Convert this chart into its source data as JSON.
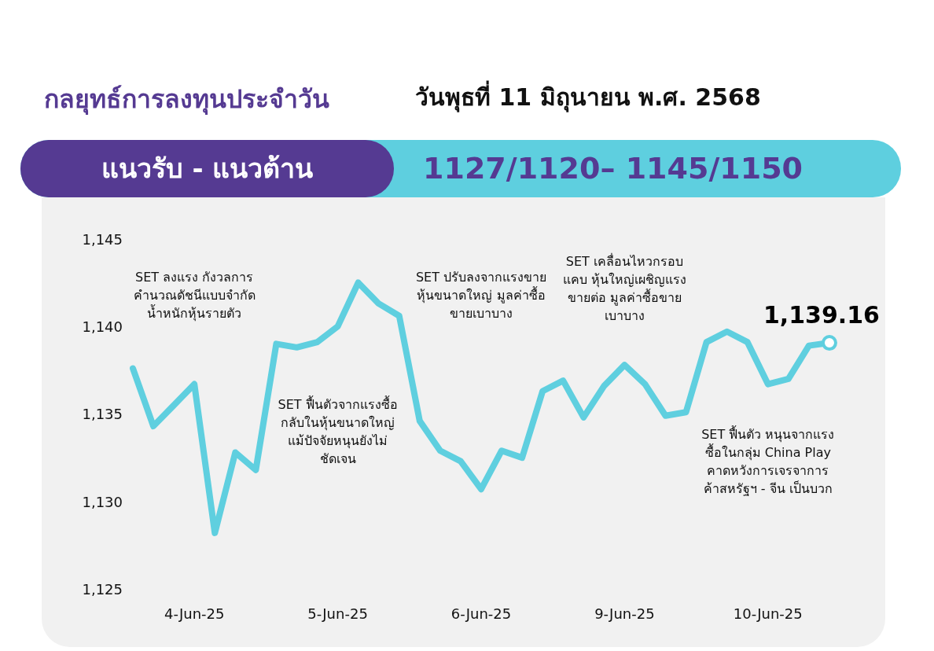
{
  "chart_data": {
    "type": "line",
    "title": "กลยุทธ์การลงทุนประจำวัน",
    "subtitle": "วันพุธที่ 11 มิถุนายน พ.ศ. 2568",
    "categories": [
      null,
      null,
      null,
      "4-Jun-25",
      null,
      null,
      null,
      null,
      null,
      null,
      "5-Jun-25",
      null,
      null,
      null,
      null,
      null,
      null,
      "6-Jun-25",
      null,
      null,
      null,
      null,
      null,
      null,
      "9-Jun-25",
      null,
      null,
      null,
      null,
      null,
      null,
      "10-Jun-25",
      null,
      null,
      null
    ],
    "series": [
      {
        "color": "#5fcfdf",
        "values": [
          1137.7,
          1134.4,
          1135.6,
          1136.8,
          1128.3,
          1132.9,
          1131.9,
          1139.1,
          1138.9,
          1139.2,
          1140.1,
          1142.6,
          1141.4,
          1140.7,
          1134.7,
          1133.0,
          1132.4,
          1130.8,
          1133.0,
          1132.6,
          1136.4,
          1137.0,
          1134.9,
          1136.7,
          1137.9,
          1136.8,
          1135.0,
          1135.2,
          1139.2,
          1139.8,
          1139.2,
          1136.8,
          1137.1,
          1139.0,
          1139.16
        ],
        "value_labels": [
          null,
          null,
          null,
          null,
          null,
          null,
          null,
          null,
          null,
          null,
          null,
          null,
          null,
          null,
          null,
          null,
          null,
          null,
          null,
          null,
          null,
          null,
          null,
          null,
          null,
          null,
          null,
          null,
          null,
          null,
          null,
          null,
          null,
          null,
          "1,139.16"
        ]
      }
    ],
    "ylim": [
      1125,
      1145
    ],
    "yticks": [
      {
        "value": 1125,
        "label": "1,125"
      },
      {
        "value": 1130,
        "label": "1,130"
      },
      {
        "value": 1135,
        "label": "1,135"
      },
      {
        "value": 1140,
        "label": "1,140"
      },
      {
        "value": 1145,
        "label": "1,145"
      }
    ],
    "annotations": [
      "แนวรับ - แนวต้าน",
      "1127/1120– 1145/1150",
      "SET ลงแรง กังวลการคำนวณดัชนีแบบจำกัดน้ำหนักหุ้นรายตัว",
      "SET ฟื้นตัวจากแรงซื้อกลับในหุ้นขนาดใหญ่ แม้ปัจจัยหนุนยังไม่ชัดเจน",
      "SET ปรับลงจากแรงขายหุ้นขนาดใหญ่ มูลค่าซื้อขายเบาบาง",
      "SET เคลื่อนไหวกรอบแคบ หุ้นใหญ่เผชิญแรงขายต่อ มูลค่าซื้อขายเบาบาง",
      "SET ฟื้นตัว หนุนจากแรงซื้อในกลุ่ม China Play คาดหวังการเจรจาการค้าสหรัฐฯ - จีน เป็นบวก"
    ]
  }
}
